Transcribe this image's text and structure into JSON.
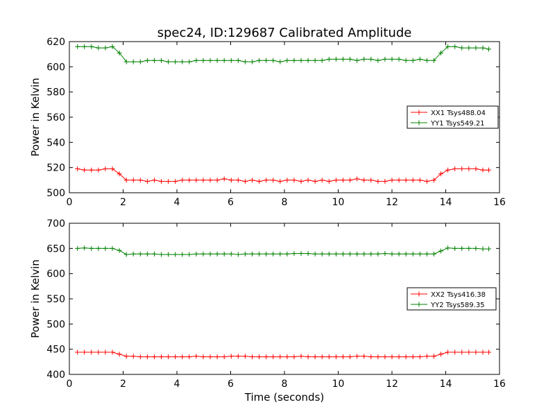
{
  "figure": {
    "title": "spec24, ID:129687 Calibrated Amplitude",
    "xlabel": "Time (seconds)"
  },
  "chart_data": [
    {
      "type": "line",
      "ylabel": "Power in Kelvin",
      "xlim": [
        0,
        16
      ],
      "ylim": [
        500,
        620
      ],
      "xticks": [
        0,
        2,
        4,
        6,
        8,
        10,
        12,
        14,
        16
      ],
      "yticks": [
        500,
        520,
        540,
        560,
        580,
        600,
        620
      ],
      "legend_position": "center-right",
      "series": [
        {
          "name": "XX1 Tsys488.04",
          "color": "#ff0000",
          "marker": "plus",
          "x": [
            0.3,
            0.56,
            0.82,
            1.08,
            1.34,
            1.6,
            1.86,
            2.12,
            2.38,
            2.64,
            2.9,
            3.16,
            3.42,
            3.68,
            3.94,
            4.2,
            4.46,
            4.72,
            4.98,
            5.24,
            5.5,
            5.76,
            6.02,
            6.28,
            6.54,
            6.8,
            7.06,
            7.32,
            7.58,
            7.84,
            8.1,
            8.36,
            8.62,
            8.88,
            9.14,
            9.4,
            9.66,
            9.92,
            10.18,
            10.44,
            10.7,
            10.96,
            11.22,
            11.48,
            11.74,
            12.0,
            12.26,
            12.52,
            12.78,
            13.04,
            13.3,
            13.56,
            13.82,
            14.08,
            14.34,
            14.6,
            14.86,
            15.12,
            15.38,
            15.6
          ],
          "y": [
            519,
            518,
            518,
            518,
            519,
            519,
            515,
            510,
            510,
            510,
            509,
            510,
            509,
            509,
            509,
            510,
            510,
            510,
            510,
            510,
            510,
            511,
            510,
            510,
            509,
            510,
            509,
            510,
            510,
            509,
            510,
            510,
            509,
            510,
            509,
            510,
            509,
            510,
            510,
            510,
            511,
            510,
            510,
            509,
            509,
            510,
            510,
            510,
            510,
            510,
            509,
            510,
            515,
            518,
            519,
            519,
            519,
            519,
            518,
            518
          ]
        },
        {
          "name": "YY1 Tsys549.21",
          "color": "#008000",
          "marker": "plus",
          "x": [
            0.3,
            0.56,
            0.82,
            1.08,
            1.34,
            1.6,
            1.86,
            2.12,
            2.38,
            2.64,
            2.9,
            3.16,
            3.42,
            3.68,
            3.94,
            4.2,
            4.46,
            4.72,
            4.98,
            5.24,
            5.5,
            5.76,
            6.02,
            6.28,
            6.54,
            6.8,
            7.06,
            7.32,
            7.58,
            7.84,
            8.1,
            8.36,
            8.62,
            8.88,
            9.14,
            9.4,
            9.66,
            9.92,
            10.18,
            10.44,
            10.7,
            10.96,
            11.22,
            11.48,
            11.74,
            12.0,
            12.26,
            12.52,
            12.78,
            13.04,
            13.3,
            13.56,
            13.82,
            14.08,
            14.34,
            14.6,
            14.86,
            15.12,
            15.38,
            15.6
          ],
          "y": [
            616,
            616,
            616,
            615,
            615,
            616,
            611,
            604,
            604,
            604,
            605,
            605,
            605,
            604,
            604,
            604,
            604,
            605,
            605,
            605,
            605,
            605,
            605,
            605,
            604,
            604,
            605,
            605,
            605,
            604,
            605,
            605,
            605,
            605,
            605,
            605,
            606,
            606,
            606,
            606,
            605,
            606,
            606,
            605,
            606,
            606,
            606,
            605,
            605,
            606,
            605,
            605,
            611,
            616,
            616,
            615,
            615,
            615,
            615,
            614
          ]
        }
      ]
    },
    {
      "type": "line",
      "ylabel": "Power in Kelvin",
      "xlim": [
        0,
        16
      ],
      "ylim": [
        400,
        700
      ],
      "xticks": [
        0,
        2,
        4,
        6,
        8,
        10,
        12,
        14,
        16
      ],
      "yticks": [
        400,
        450,
        500,
        550,
        600,
        650,
        700
      ],
      "legend_position": "center-right",
      "series": [
        {
          "name": "XX2 Tsys416.38",
          "color": "#ff0000",
          "marker": "plus",
          "x": [
            0.3,
            0.56,
            0.82,
            1.08,
            1.34,
            1.6,
            1.86,
            2.12,
            2.38,
            2.64,
            2.9,
            3.16,
            3.42,
            3.68,
            3.94,
            4.2,
            4.46,
            4.72,
            4.98,
            5.24,
            5.5,
            5.76,
            6.02,
            6.28,
            6.54,
            6.8,
            7.06,
            7.32,
            7.58,
            7.84,
            8.1,
            8.36,
            8.62,
            8.88,
            9.14,
            9.4,
            9.66,
            9.92,
            10.18,
            10.44,
            10.7,
            10.96,
            11.22,
            11.48,
            11.74,
            12.0,
            12.26,
            12.52,
            12.78,
            13.04,
            13.3,
            13.56,
            13.82,
            14.08,
            14.34,
            14.6,
            14.86,
            15.12,
            15.38,
            15.6
          ],
          "y": [
            444,
            444,
            444,
            444,
            444,
            444,
            440,
            436,
            436,
            435,
            435,
            435,
            435,
            435,
            435,
            435,
            435,
            436,
            435,
            435,
            435,
            435,
            436,
            436,
            436,
            435,
            435,
            435,
            435,
            435,
            435,
            435,
            436,
            435,
            435,
            435,
            435,
            435,
            435,
            435,
            436,
            436,
            435,
            435,
            435,
            435,
            435,
            435,
            435,
            435,
            436,
            436,
            440,
            444,
            444,
            444,
            444,
            444,
            444,
            444
          ]
        },
        {
          "name": "YY2 Tsys589.35",
          "color": "#008000",
          "marker": "plus",
          "x": [
            0.3,
            0.56,
            0.82,
            1.08,
            1.34,
            1.6,
            1.86,
            2.12,
            2.38,
            2.64,
            2.9,
            3.16,
            3.42,
            3.68,
            3.94,
            4.2,
            4.46,
            4.72,
            4.98,
            5.24,
            5.5,
            5.76,
            6.02,
            6.28,
            6.54,
            6.8,
            7.06,
            7.32,
            7.58,
            7.84,
            8.1,
            8.36,
            8.62,
            8.88,
            9.14,
            9.4,
            9.66,
            9.92,
            10.18,
            10.44,
            10.7,
            10.96,
            11.22,
            11.48,
            11.74,
            12.0,
            12.26,
            12.52,
            12.78,
            13.04,
            13.3,
            13.56,
            13.82,
            14.08,
            14.34,
            14.6,
            14.86,
            15.12,
            15.38,
            15.6
          ],
          "y": [
            650,
            651,
            650,
            650,
            650,
            650,
            646,
            638,
            639,
            639,
            639,
            639,
            638,
            638,
            638,
            638,
            638,
            639,
            639,
            639,
            639,
            639,
            639,
            638,
            639,
            639,
            639,
            639,
            639,
            639,
            639,
            640,
            640,
            640,
            639,
            639,
            639,
            639,
            639,
            639,
            639,
            639,
            639,
            639,
            640,
            639,
            639,
            639,
            639,
            639,
            639,
            639,
            645,
            651,
            650,
            650,
            650,
            650,
            649,
            649
          ]
        }
      ]
    }
  ]
}
